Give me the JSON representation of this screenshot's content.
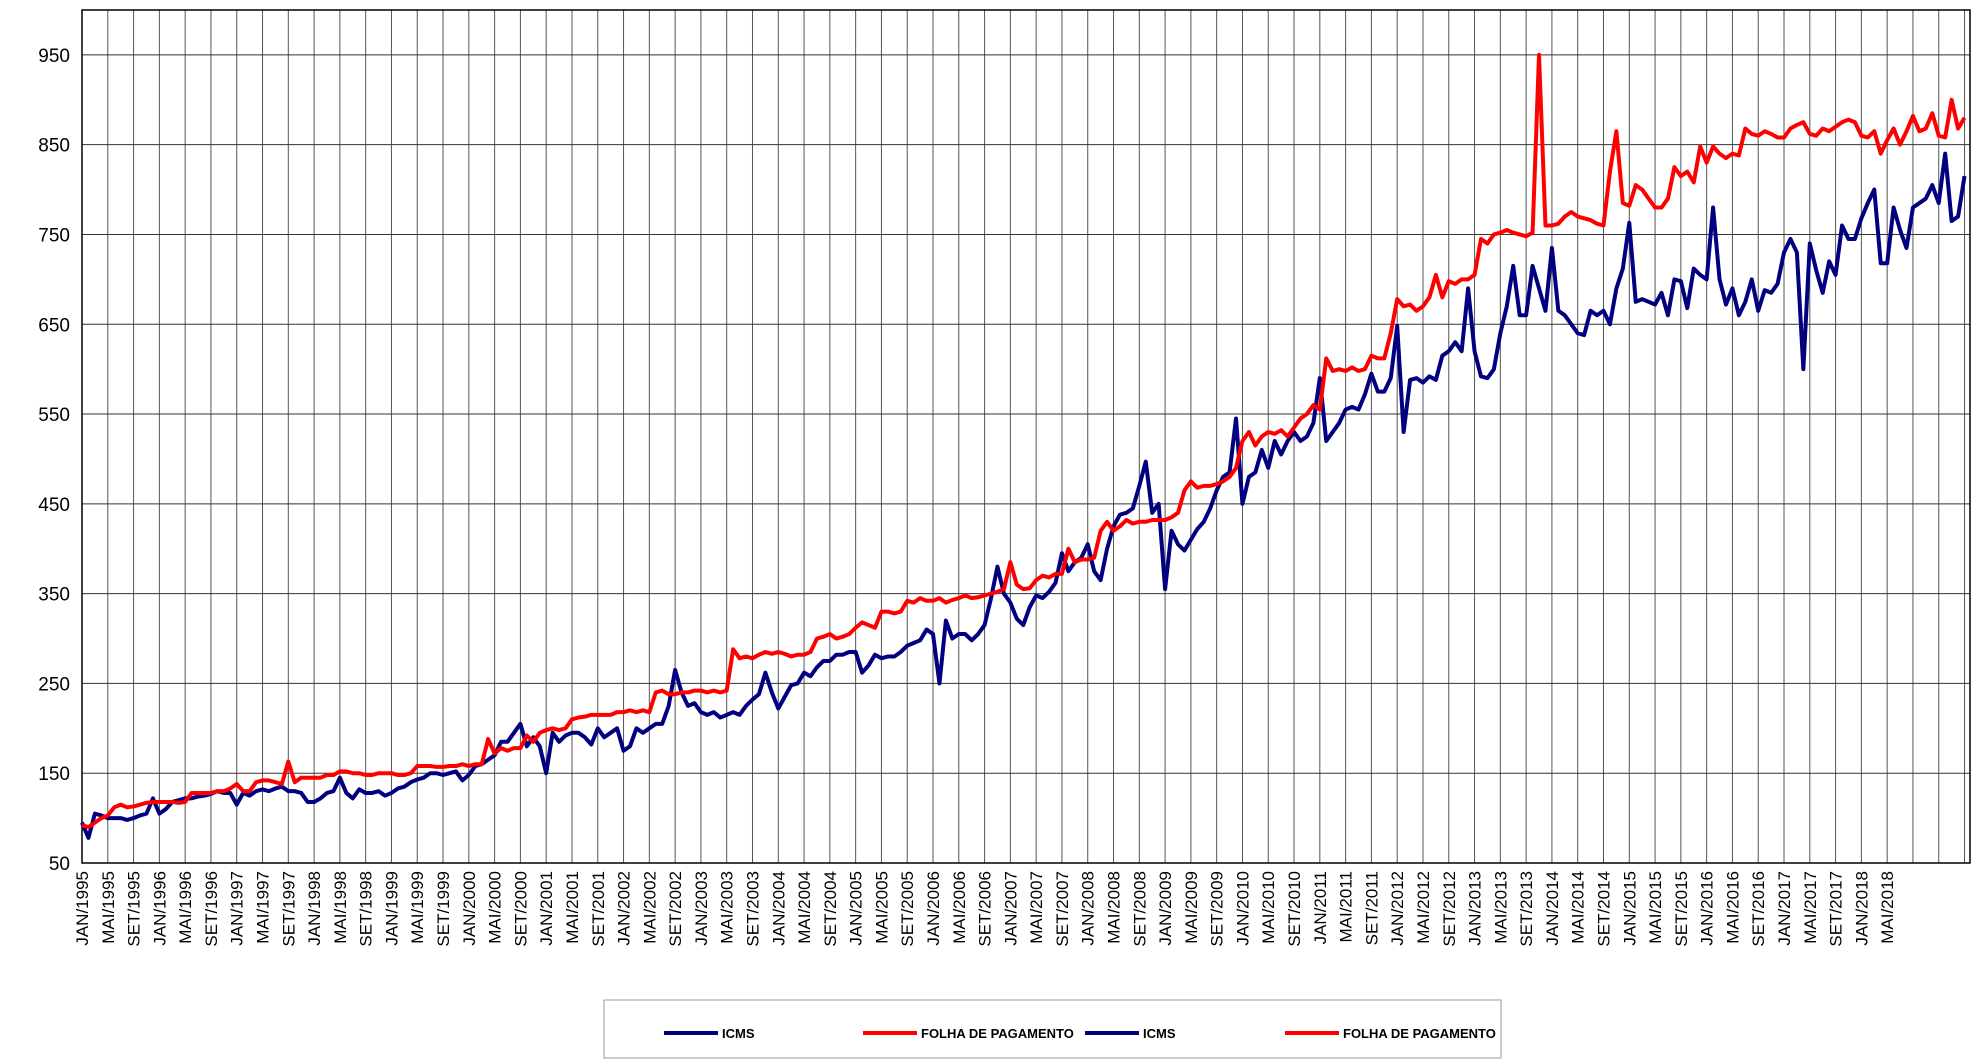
{
  "chart_data": {
    "type": "line",
    "categories": [
      "JAN/1995",
      null,
      null,
      null,
      "MAI/1995",
      null,
      null,
      null,
      "SET/1995",
      null,
      null,
      null,
      "JAN/1996",
      null,
      null,
      null,
      "MAI/1996",
      null,
      null,
      null,
      "SET/1996",
      null,
      null,
      null,
      "JAN/1997",
      null,
      null,
      null,
      "MAI/1997",
      null,
      null,
      null,
      "SET/1997",
      null,
      null,
      null,
      "JAN/1998",
      null,
      null,
      null,
      "MAI/1998",
      null,
      null,
      null,
      "SET/1998",
      null,
      null,
      null,
      "JAN/1999",
      null,
      null,
      null,
      "MAI/1999",
      null,
      null,
      null,
      "SET/1999",
      null,
      null,
      null,
      "JAN/2000",
      null,
      null,
      null,
      "MAI/2000",
      null,
      null,
      null,
      "SET/2000",
      null,
      null,
      null,
      "JAN/2001",
      null,
      null,
      null,
      "MAI/2001",
      null,
      null,
      null,
      "SET/2001",
      null,
      null,
      null,
      "JAN/2002",
      null,
      null,
      null,
      "MAI/2002",
      null,
      null,
      null,
      "SET/2002",
      null,
      null,
      null,
      "JAN/2003",
      null,
      null,
      null,
      "MAI/2003",
      null,
      null,
      null,
      "SET/2003",
      null,
      null,
      null,
      "JAN/2004",
      null,
      null,
      null,
      "MAI/2004",
      null,
      null,
      null,
      "SET/2004",
      null,
      null,
      null,
      "JAN/2005",
      null,
      null,
      null,
      "MAI/2005",
      null,
      null,
      null,
      "SET/2005",
      null,
      null,
      null,
      "JAN/2006",
      null,
      null,
      null,
      "MAI/2006",
      null,
      null,
      null,
      "SET/2006",
      null,
      null,
      null,
      "JAN/2007",
      null,
      null,
      null,
      "MAI/2007",
      null,
      null,
      null,
      "SET/2007",
      null,
      null,
      null,
      "JAN/2008",
      null,
      null,
      null,
      "MAI/2008",
      null,
      null,
      null,
      "SET/2008",
      null,
      null,
      null,
      "JAN/2009",
      null,
      null,
      null,
      "MAI/2009",
      null,
      null,
      null,
      "SET/2009",
      null,
      null,
      null,
      "JAN/2010",
      null,
      null,
      null,
      "MAI/2010",
      null,
      null,
      null,
      "SET/2010",
      null,
      null,
      null,
      "JAN/2011",
      null,
      null,
      null,
      "MAI/2011",
      null,
      null,
      null,
      "SET/2011",
      null,
      null,
      null,
      "JAN/2012",
      null,
      null,
      null,
      "MAI/2012",
      null,
      null,
      null,
      "SET/2012",
      null,
      null,
      null,
      "JAN/2013",
      null,
      null,
      null,
      "MAI/2013",
      null,
      null,
      null,
      "SET/2013",
      null,
      null,
      null,
      "JAN/2014",
      null,
      null,
      null,
      "MAI/2014",
      null,
      null,
      null,
      "SET/2014",
      null,
      null,
      null,
      "JAN/2015",
      null,
      null,
      null,
      "MAI/2015",
      null,
      null,
      null,
      "SET/2015",
      null,
      null,
      null,
      "JAN/2016",
      null,
      null,
      null,
      "MAI/2016",
      null,
      null,
      null,
      "SET/2016",
      null,
      null,
      null,
      "JAN/2017",
      null,
      null,
      null,
      "MAI/2017",
      null,
      null,
      null,
      "SET/2017",
      null,
      null,
      null,
      "JAN/2018",
      null,
      null,
      null,
      "MAI/2018",
      null,
      null,
      null,
      null,
      null,
      null,
      null,
      null,
      null,
      null,
      null,
      null
    ],
    "series": [
      {
        "name": "ICMS",
        "color": "#000080",
        "values": [
          95,
          78,
          105,
          103,
          100,
          100,
          100,
          98,
          100,
          103,
          105,
          122,
          105,
          110,
          118,
          120,
          122,
          122,
          124,
          125,
          127,
          130,
          128,
          128,
          115,
          128,
          125,
          130,
          132,
          130,
          133,
          135,
          130,
          130,
          128,
          118,
          118,
          122,
          128,
          130,
          145,
          128,
          122,
          132,
          128,
          128,
          130,
          125,
          128,
          133,
          135,
          140,
          143,
          145,
          150,
          150,
          148,
          150,
          152,
          142,
          148,
          158,
          160,
          165,
          170,
          185,
          185,
          195,
          205,
          180,
          190,
          180,
          150,
          195,
          185,
          192,
          195,
          195,
          190,
          182,
          200,
          190,
          195,
          200,
          175,
          180,
          200,
          195,
          200,
          205,
          205,
          225,
          265,
          240,
          225,
          228,
          218,
          215,
          218,
          212,
          215,
          218,
          215,
          225,
          232,
          238,
          262,
          240,
          222,
          235,
          248,
          250,
          262,
          258,
          268,
          275,
          275,
          282,
          282,
          285,
          285,
          262,
          270,
          282,
          278,
          280,
          280,
          285,
          292,
          295,
          298,
          310,
          305,
          250,
          320,
          300,
          305,
          305,
          298,
          305,
          315,
          345,
          380,
          350,
          340,
          322,
          315,
          335,
          348,
          345,
          352,
          362,
          395,
          375,
          385,
          390,
          405,
          375,
          365,
          400,
          425,
          438,
          440,
          445,
          470,
          497,
          440,
          450,
          355,
          420,
          405,
          398,
          410,
          422,
          430,
          445,
          465,
          480,
          485,
          545,
          450,
          480,
          485,
          510,
          490,
          520,
          505,
          520,
          530,
          520,
          525,
          540,
          590,
          520,
          530,
          540,
          555,
          558,
          555,
          572,
          595,
          575,
          575,
          590,
          648,
          530,
          588,
          590,
          585,
          592,
          588,
          615,
          620,
          630,
          620,
          690,
          620,
          592,
          590,
          600,
          640,
          670,
          715,
          660,
          660,
          715,
          690,
          665,
          735,
          665,
          660,
          650,
          640,
          638,
          665,
          660,
          665,
          650,
          690,
          712,
          763,
          675,
          678,
          675,
          672,
          685,
          660,
          700,
          698,
          668,
          712,
          705,
          700,
          780,
          700,
          672,
          690,
          660,
          675,
          700,
          665,
          688,
          685,
          695,
          730,
          745,
          730,
          600,
          740,
          710,
          685,
          720,
          705,
          760,
          745,
          745,
          768,
          785,
          800,
          718,
          718,
          780,
          755,
          735,
          780,
          785,
          790,
          805,
          785,
          840,
          765,
          770,
          815
        ]
      },
      {
        "name": "FOLHA DE PAGAMENTO",
        "color": "#ff0000",
        "values": [
          92,
          90,
          95,
          100,
          103,
          112,
          115,
          112,
          113,
          115,
          117,
          118,
          118,
          118,
          118,
          117,
          118,
          128,
          128,
          128,
          128,
          130,
          130,
          133,
          138,
          130,
          130,
          140,
          142,
          142,
          140,
          138,
          163,
          140,
          145,
          145,
          145,
          145,
          148,
          148,
          152,
          152,
          150,
          150,
          148,
          148,
          150,
          150,
          150,
          148,
          148,
          150,
          158,
          158,
          158,
          157,
          157,
          158,
          158,
          160,
          158,
          160,
          160,
          188,
          172,
          178,
          175,
          178,
          178,
          192,
          185,
          195,
          198,
          200,
          198,
          200,
          210,
          212,
          213,
          215,
          215,
          215,
          215,
          218,
          218,
          220,
          218,
          220,
          218,
          240,
          242,
          238,
          238,
          240,
          240,
          242,
          242,
          240,
          242,
          240,
          242,
          288,
          278,
          280,
          278,
          282,
          285,
          283,
          285,
          283,
          280,
          282,
          282,
          285,
          300,
          302,
          305,
          300,
          302,
          305,
          312,
          318,
          315,
          312,
          330,
          330,
          328,
          330,
          342,
          340,
          345,
          342,
          342,
          345,
          340,
          343,
          345,
          348,
          345,
          346,
          348,
          350,
          352,
          355,
          385,
          360,
          355,
          356,
          365,
          370,
          368,
          372,
          372,
          400,
          385,
          388,
          388,
          390,
          420,
          430,
          420,
          425,
          432,
          428,
          430,
          430,
          432,
          432,
          432,
          435,
          440,
          465,
          475,
          468,
          470,
          470,
          472,
          475,
          480,
          490,
          520,
          530,
          515,
          525,
          530,
          528,
          532,
          525,
          535,
          545,
          550,
          560,
          555,
          612,
          598,
          600,
          598,
          602,
          598,
          600,
          615,
          612,
          612,
          640,
          678,
          670,
          672,
          665,
          670,
          680,
          705,
          680,
          698,
          695,
          700,
          700,
          705,
          745,
          740,
          750,
          752,
          755,
          752,
          750,
          748,
          752,
          950,
          760,
          760,
          762,
          770,
          775,
          770,
          768,
          766,
          762,
          760,
          820,
          865,
          785,
          782,
          805,
          800,
          790,
          780,
          780,
          790,
          825,
          815,
          820,
          808,
          848,
          830,
          848,
          840,
          835,
          840,
          838,
          868,
          862,
          860,
          865,
          862,
          858,
          858,
          868,
          872,
          875,
          862,
          860,
          868,
          865,
          870,
          875,
          878,
          875,
          860,
          858,
          865,
          840,
          855,
          868,
          850,
          865,
          882,
          865,
          868,
          885,
          860,
          858,
          900,
          868,
          880
        ]
      }
    ],
    "legend": [
      {
        "name": "ICMS",
        "color": "#000080"
      },
      {
        "name": "FOLHA DE PAGAMENTO",
        "color": "#ff0000"
      },
      {
        "name": "ICMS",
        "color": "#000080"
      },
      {
        "name": "FOLHA DE PAGAMENTO",
        "color": "#ff0000"
      }
    ],
    "ylim": [
      50,
      1000
    ],
    "yticks": [
      50,
      150,
      250,
      350,
      450,
      550,
      650,
      750,
      850,
      950
    ],
    "grid": true
  }
}
